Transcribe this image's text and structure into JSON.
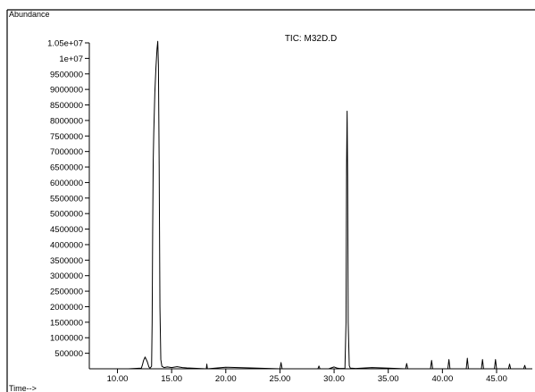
{
  "chart_data": {
    "type": "line",
    "title": "TIC: M32D.D",
    "ylabel": "Abundance",
    "xlabel": "Time-->",
    "xlim": [
      7.4,
      48.3
    ],
    "ylim": [
      0,
      10500000
    ],
    "x_ticks": [
      {
        "value": 10,
        "label": "10.00"
      },
      {
        "value": 15,
        "label": "15.00"
      },
      {
        "value": 20,
        "label": "20.00"
      },
      {
        "value": 25,
        "label": "25.00"
      },
      {
        "value": 30,
        "label": "30.00"
      },
      {
        "value": 35,
        "label": "35.00"
      },
      {
        "value": 40,
        "label": "40.00"
      },
      {
        "value": 45,
        "label": "45.00"
      }
    ],
    "y_ticks": [
      {
        "value": 500000,
        "label": "500000"
      },
      {
        "value": 1000000,
        "label": "1000000"
      },
      {
        "value": 1500000,
        "label": "1500000"
      },
      {
        "value": 2000000,
        "label": "2000000"
      },
      {
        "value": 2500000,
        "label": "2500000"
      },
      {
        "value": 3000000,
        "label": "3000000"
      },
      {
        "value": 3500000,
        "label": "3500000"
      },
      {
        "value": 4000000,
        "label": "4000000"
      },
      {
        "value": 4500000,
        "label": "4500000"
      },
      {
        "value": 5000000,
        "label": "5000000"
      },
      {
        "value": 5500000,
        "label": "5500000"
      },
      {
        "value": 6000000,
        "label": "6000000"
      },
      {
        "value": 6500000,
        "label": "6500000"
      },
      {
        "value": 7000000,
        "label": "7000000"
      },
      {
        "value": 7500000,
        "label": "7500000"
      },
      {
        "value": 8000000,
        "label": "8000000"
      },
      {
        "value": 8500000,
        "label": "8500000"
      },
      {
        "value": 9000000,
        "label": "9000000"
      },
      {
        "value": 9500000,
        "label": "9500000"
      },
      {
        "value": 10000000,
        "label": "1e+07"
      },
      {
        "value": 10500000,
        "label": "1.05e+07"
      }
    ],
    "series": [
      {
        "color": "#000000",
        "x": [
          7.4,
          11.0,
          12.2,
          12.3,
          12.4,
          12.55,
          12.75,
          12.9,
          13.0,
          13.15,
          13.2,
          13.25,
          13.3,
          13.35,
          13.45,
          13.55,
          13.65,
          13.72,
          13.78,
          13.85,
          13.92,
          14.0,
          14.1,
          14.3,
          14.6,
          15.0,
          15.5,
          16.0,
          16.4,
          18.2,
          18.25,
          18.3,
          20.0,
          25.0,
          25.1,
          25.2,
          28.5,
          28.6,
          28.7,
          29.5,
          30.0,
          30.3,
          30.5,
          31.0,
          31.1,
          31.15,
          31.2,
          31.25,
          31.3,
          31.4,
          31.5,
          32.0,
          33.5,
          35.0,
          36.6,
          36.7,
          36.8,
          38.9,
          39.0,
          39.1,
          40.5,
          40.6,
          40.7,
          42.2,
          42.3,
          42.4,
          43.6,
          43.7,
          43.8,
          44.8,
          44.9,
          45.0,
          46.1,
          46.2,
          46.3,
          47.5,
          47.6,
          47.7,
          48.3
        ],
        "y": [
          0,
          0,
          20000,
          120000,
          260000,
          380000,
          230000,
          60000,
          20000,
          80000,
          1500000,
          4500000,
          6700000,
          7600000,
          8900000,
          9700000,
          10300000,
          10550000,
          9800000,
          6500000,
          2000000,
          300000,
          80000,
          40000,
          60000,
          40000,
          70000,
          40000,
          30000,
          0,
          150000,
          0,
          50000,
          0,
          200000,
          0,
          0,
          90000,
          0,
          0,
          60000,
          20000,
          10000,
          10000,
          1500000,
          6500000,
          8300000,
          6200000,
          1500000,
          100000,
          20000,
          10000,
          40000,
          20000,
          0,
          170000,
          0,
          0,
          270000,
          0,
          0,
          300000,
          0,
          0,
          340000,
          0,
          0,
          300000,
          0,
          0,
          300000,
          0,
          0,
          150000,
          0,
          0,
          110000,
          0,
          0
        ]
      }
    ]
  }
}
